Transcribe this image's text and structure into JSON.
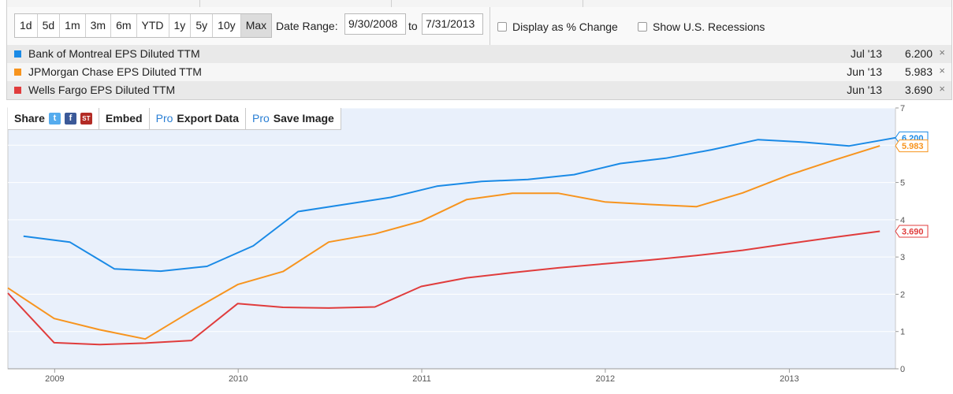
{
  "toolbar": {
    "ranges": [
      "1d",
      "5d",
      "1m",
      "3m",
      "6m",
      "YTD",
      "1y",
      "5y",
      "10y",
      "Max"
    ],
    "active_range": "Max",
    "date_range_label": "Date Range:",
    "start_date": "9/30/2008",
    "to_label": "to",
    "end_date": "7/31/2013",
    "pct_change_label": "Display as % Change",
    "recessions_label": "Show U.S. Recessions"
  },
  "legend": [
    {
      "name": "Bank of Montreal EPS Diluted TTM",
      "date": "Jul '13",
      "value": "6.200",
      "color": "#1a8ae6",
      "close": "×"
    },
    {
      "name": "JPMorgan Chase EPS Diluted TTM",
      "date": "Jun '13",
      "value": "5.983",
      "color": "#f7941e",
      "close": "×"
    },
    {
      "name": "Wells Fargo EPS Diluted TTM",
      "date": "Jun '13",
      "value": "3.690",
      "color": "#e03c3c",
      "close": "×"
    }
  ],
  "share_bar": {
    "share": "Share",
    "embed": "Embed",
    "pro": "Pro",
    "export": "Export Data",
    "save": "Save Image",
    "icons": [
      "twitter-icon",
      "facebook-icon",
      "stocktwits-icon"
    ]
  },
  "chart_data": {
    "type": "line",
    "x_range": [
      "2008-09-30",
      "2013-07-31"
    ],
    "ylim": [
      0,
      7
    ],
    "y_ticks": [
      0,
      1,
      2,
      3,
      4,
      5,
      6,
      7
    ],
    "x_ticks": [
      "2009",
      "2010",
      "2011",
      "2012",
      "2013"
    ],
    "grid": "horizontal",
    "background": "#e9f0fb",
    "series": [
      {
        "name": "Bank of Montreal EPS Diluted TTM",
        "color": "#1a8ae6",
        "end_label": "6.200",
        "points": [
          [
            "2008-10-31",
            3.56
          ],
          [
            "2009-01-31",
            3.4
          ],
          [
            "2009-04-30",
            2.68
          ],
          [
            "2009-07-31",
            2.62
          ],
          [
            "2009-10-31",
            2.75
          ],
          [
            "2010-01-31",
            3.3
          ],
          [
            "2010-04-30",
            4.22
          ],
          [
            "2010-07-31",
            4.41
          ],
          [
            "2010-10-31",
            4.6
          ],
          [
            "2011-01-31",
            4.9
          ],
          [
            "2011-04-30",
            5.03
          ],
          [
            "2011-07-31",
            5.08
          ],
          [
            "2011-10-31",
            5.21
          ],
          [
            "2012-01-31",
            5.51
          ],
          [
            "2012-04-30",
            5.65
          ],
          [
            "2012-07-31",
            5.88
          ],
          [
            "2012-10-31",
            6.15
          ],
          [
            "2013-01-31",
            6.08
          ],
          [
            "2013-04-30",
            5.98
          ],
          [
            "2013-07-31",
            6.2
          ]
        ]
      },
      {
        "name": "JPMorgan Chase EPS Diluted TTM",
        "color": "#f7941e",
        "end_label": "5.983",
        "points": [
          [
            "2008-09-30",
            2.17
          ],
          [
            "2008-12-31",
            1.35
          ],
          [
            "2009-03-31",
            1.05
          ],
          [
            "2009-06-30",
            0.8
          ],
          [
            "2009-09-30",
            1.55
          ],
          [
            "2009-12-31",
            2.26
          ],
          [
            "2010-03-31",
            2.61
          ],
          [
            "2010-06-30",
            3.4
          ],
          [
            "2010-09-30",
            3.62
          ],
          [
            "2010-12-31",
            3.96
          ],
          [
            "2011-03-31",
            4.54
          ],
          [
            "2011-06-30",
            4.71
          ],
          [
            "2011-09-30",
            4.71
          ],
          [
            "2011-12-31",
            4.48
          ],
          [
            "2012-03-31",
            4.41
          ],
          [
            "2012-06-30",
            4.35
          ],
          [
            "2012-09-30",
            4.72
          ],
          [
            "2012-12-31",
            5.2
          ],
          [
            "2013-03-31",
            5.6
          ],
          [
            "2013-06-30",
            5.983
          ]
        ]
      },
      {
        "name": "Wells Fargo EPS Diluted TTM",
        "color": "#e03c3c",
        "end_label": "3.690",
        "points": [
          [
            "2008-09-30",
            2.03
          ],
          [
            "2008-12-31",
            0.7
          ],
          [
            "2009-03-31",
            0.65
          ],
          [
            "2009-06-30",
            0.69
          ],
          [
            "2009-09-30",
            0.76
          ],
          [
            "2009-12-31",
            1.75
          ],
          [
            "2010-03-31",
            1.65
          ],
          [
            "2010-06-30",
            1.63
          ],
          [
            "2010-09-30",
            1.66
          ],
          [
            "2010-12-31",
            2.21
          ],
          [
            "2011-03-31",
            2.44
          ],
          [
            "2011-06-30",
            2.58
          ],
          [
            "2011-09-30",
            2.71
          ],
          [
            "2011-12-31",
            2.82
          ],
          [
            "2012-03-31",
            2.92
          ],
          [
            "2012-06-30",
            3.04
          ],
          [
            "2012-09-30",
            3.18
          ],
          [
            "2012-12-31",
            3.36
          ],
          [
            "2013-03-31",
            3.53
          ],
          [
            "2013-06-30",
            3.69
          ]
        ]
      }
    ]
  }
}
